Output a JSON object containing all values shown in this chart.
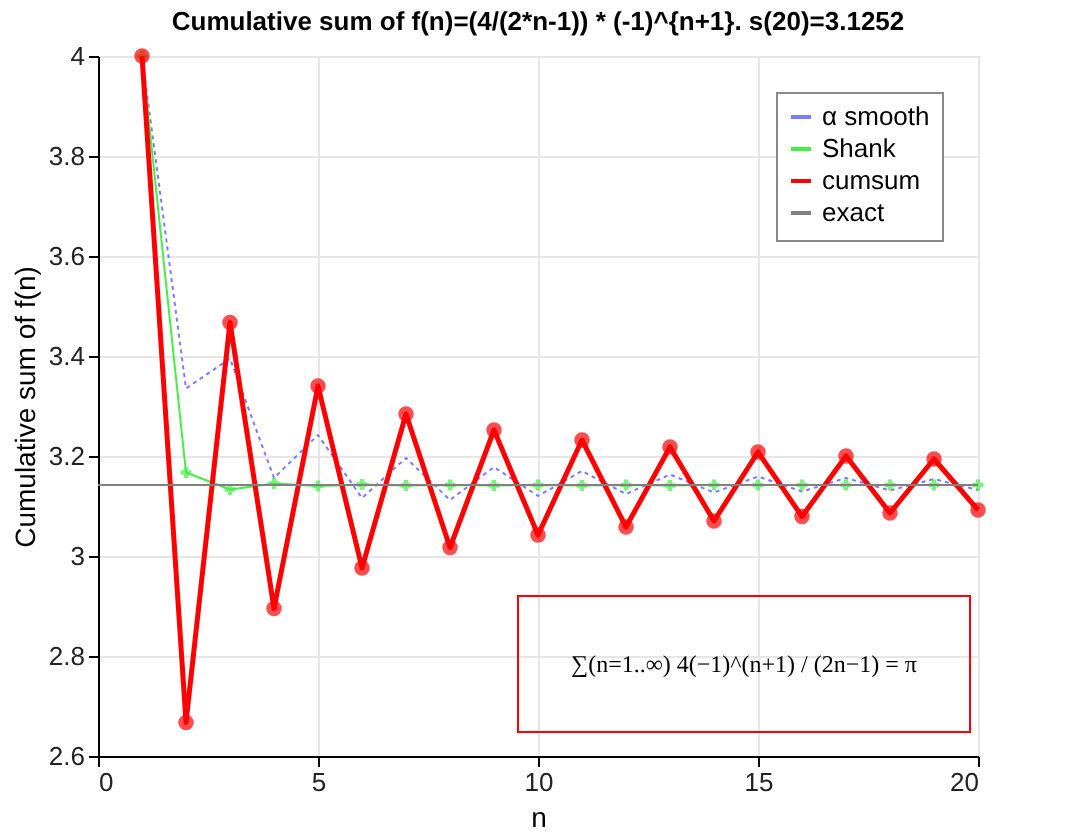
{
  "chart_data": {
    "type": "line",
    "title": "Cumulative sum of f(n)=(4/(2*n-1)) * (-1)^{n+1}. s(20)=3.1252",
    "xlabel": "n",
    "ylabel": "Cumulative sum of f(n)",
    "x": [
      1,
      2,
      3,
      4,
      5,
      6,
      7,
      8,
      9,
      10,
      11,
      12,
      13,
      14,
      15,
      16,
      17,
      18,
      19,
      20
    ],
    "series": [
      {
        "name": "α smooth",
        "color": "#7b7bff",
        "line_style": "dotted",
        "marker": "none",
        "values": [
          4,
          3.335,
          3.395,
          3.156,
          3.242,
          3.116,
          3.196,
          3.112,
          3.178,
          3.12,
          3.17,
          3.124,
          3.163,
          3.127,
          3.159,
          3.129,
          3.156,
          3.131,
          3.154,
          3.132
        ]
      },
      {
        "name": "Shank",
        "color": "#44ee44",
        "line_style": "solid",
        "marker": "cross",
        "values": [
          4,
          3.167,
          3.133,
          3.145,
          3.14,
          3.143,
          3.141,
          3.142,
          3.141,
          3.142,
          3.141,
          3.142,
          3.141,
          3.142,
          3.142,
          3.142,
          3.142,
          3.142,
          3.142,
          3.142
        ]
      },
      {
        "name": "cumsum",
        "color": "#ff0000",
        "line_style": "solid",
        "marker": "circle",
        "values": [
          4,
          2.667,
          3.467,
          2.895,
          3.34,
          2.976,
          3.284,
          3.017,
          3.252,
          3.042,
          3.232,
          3.058,
          3.218,
          3.07,
          3.208,
          3.079,
          3.2,
          3.086,
          3.194,
          3.092
        ]
      },
      {
        "name": "exact",
        "color": "#808080",
        "line_style": "solid",
        "marker": "none",
        "x": [
          0,
          20
        ],
        "values": [
          3.142,
          3.142
        ]
      }
    ],
    "xlim": [
      0,
      20
    ],
    "xticks": [
      0,
      5,
      10,
      15,
      20
    ],
    "ylim": [
      2.6,
      4
    ],
    "yticks": [
      2.6,
      2.8,
      3,
      3.2,
      3.4,
      3.6,
      3.8,
      4
    ],
    "grid": true,
    "legend": "top right",
    "annotations": [
      "∑(n=1..∞) 4(−1)^(n+1) / (2n−1) = π"
    ]
  }
}
